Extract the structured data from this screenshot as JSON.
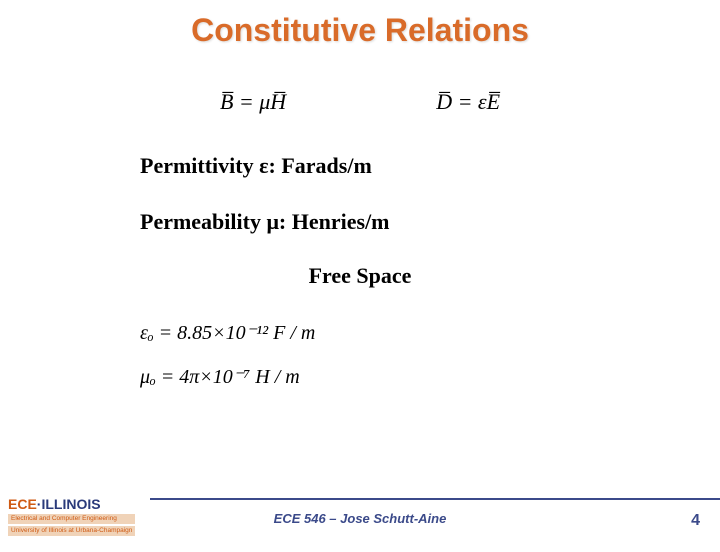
{
  "title": "Constitutive Relations",
  "eq_b": "B̅ = μH̅",
  "eq_d": "D̅ = εE̅",
  "permittivity_line": "Permittivity ε: Farads/m",
  "permeability_line": "Permeability μ: Henries/m",
  "free_space_heading": "Free Space",
  "eps0_line": "εₒ = 8.85×10⁻¹²   F / m",
  "mu0_line": "μₒ = 4π×10⁻⁷   H / m",
  "footer": "ECE 546 – Jose Schutt-Aine",
  "page_number": "4",
  "logo": {
    "ece": "EC",
    "e_mid": "E",
    "sep": "·",
    "illinois": "ILLINOIS",
    "sub1": "Electrical and Computer Engineering",
    "sub2": "University of Illinois at Urbana-Champaign"
  },
  "colors": {
    "title": "#d96b29",
    "footer_blue": "#3b4a8a",
    "logo_orange": "#cf5a13",
    "logo_blue": "#2a3a7a",
    "background": "#ffffff"
  }
}
